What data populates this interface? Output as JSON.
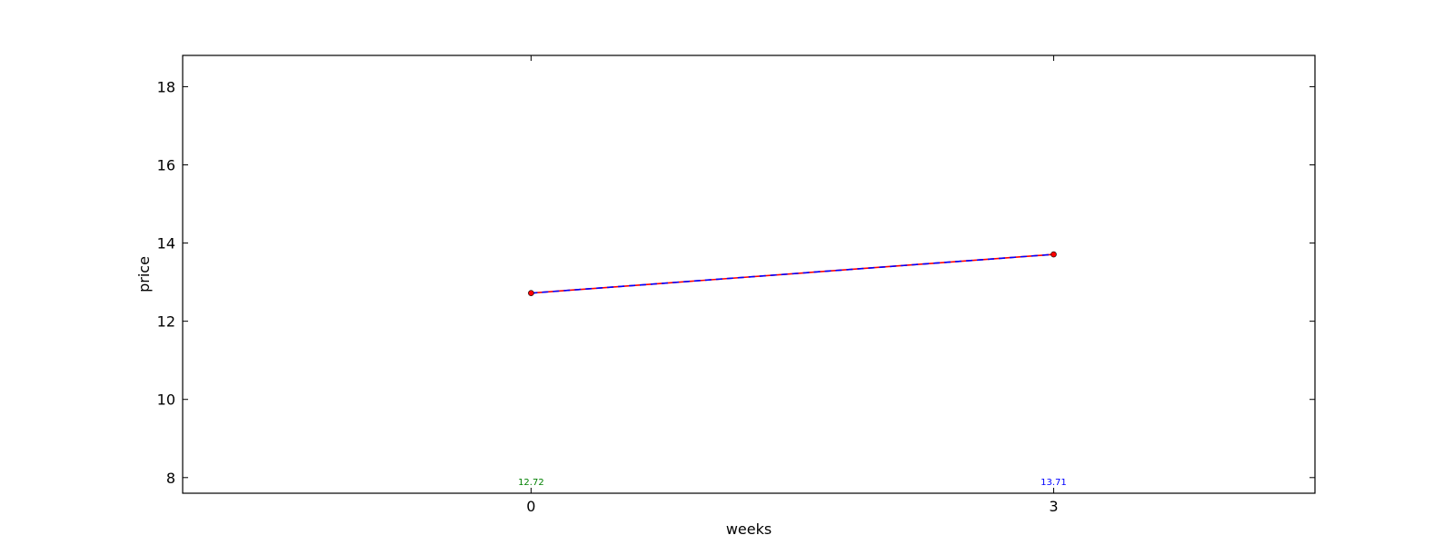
{
  "chart_data": {
    "type": "line",
    "title": "",
    "xlabel": "weeks",
    "ylabel": "price",
    "x": [
      0,
      3
    ],
    "x_ticks": [
      0,
      3
    ],
    "xlim": [
      -2,
      4.5
    ],
    "ylim": [
      7.6,
      18.8
    ],
    "y_ticks": [
      8,
      10,
      12,
      14,
      16,
      18
    ],
    "grid": false,
    "legend": "none",
    "series": [
      {
        "values": [
          12.72,
          13.71
        ],
        "line_colors": [
          "#ff0000",
          "#0000ff"
        ],
        "marker_color": "#ff0000",
        "dashed": true
      }
    ],
    "data_labels": [
      {
        "x": 0,
        "text": "12.72",
        "color": "#008000",
        "y": 7.9
      },
      {
        "x": 3,
        "text": "13.71",
        "color": "#0000ff",
        "y": 7.9
      }
    ]
  }
}
